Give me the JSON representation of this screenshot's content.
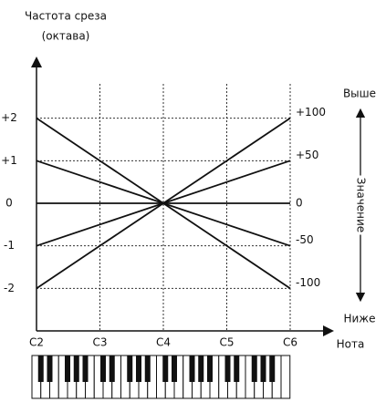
{
  "chart_data": {
    "type": "line",
    "y_label": [
      "Частота среза",
      "(октава)"
    ],
    "x_label": "Нота",
    "categories": [
      "C2",
      "C3",
      "C4",
      "C5",
      "C6"
    ],
    "ylim": [
      -3,
      3
    ],
    "yticks": [
      {
        "value": 2,
        "label": "+2"
      },
      {
        "value": 1,
        "label": "+1"
      },
      0,
      -1,
      -2
    ],
    "grid": true,
    "series": [
      {
        "name": "+100",
        "color": "#111111",
        "values": [
          -2,
          -1,
          0,
          1,
          2
        ]
      },
      {
        "name": "+50",
        "color": "#111111",
        "values": [
          -1,
          -0.5,
          0,
          0.5,
          1
        ]
      },
      {
        "name": "0",
        "color": "#111111",
        "values": [
          0,
          0,
          0,
          0,
          0
        ]
      },
      {
        "name": "-50",
        "color": "#111111",
        "values": [
          1,
          0.5,
          0,
          -0.5,
          -1
        ]
      },
      {
        "name": "-100",
        "color": "#111111",
        "values": [
          2,
          1,
          0,
          -1,
          -2
        ]
      }
    ],
    "value_axis": {
      "top": "Выше",
      "title": "Значение",
      "bottom": "Ниже"
    }
  }
}
